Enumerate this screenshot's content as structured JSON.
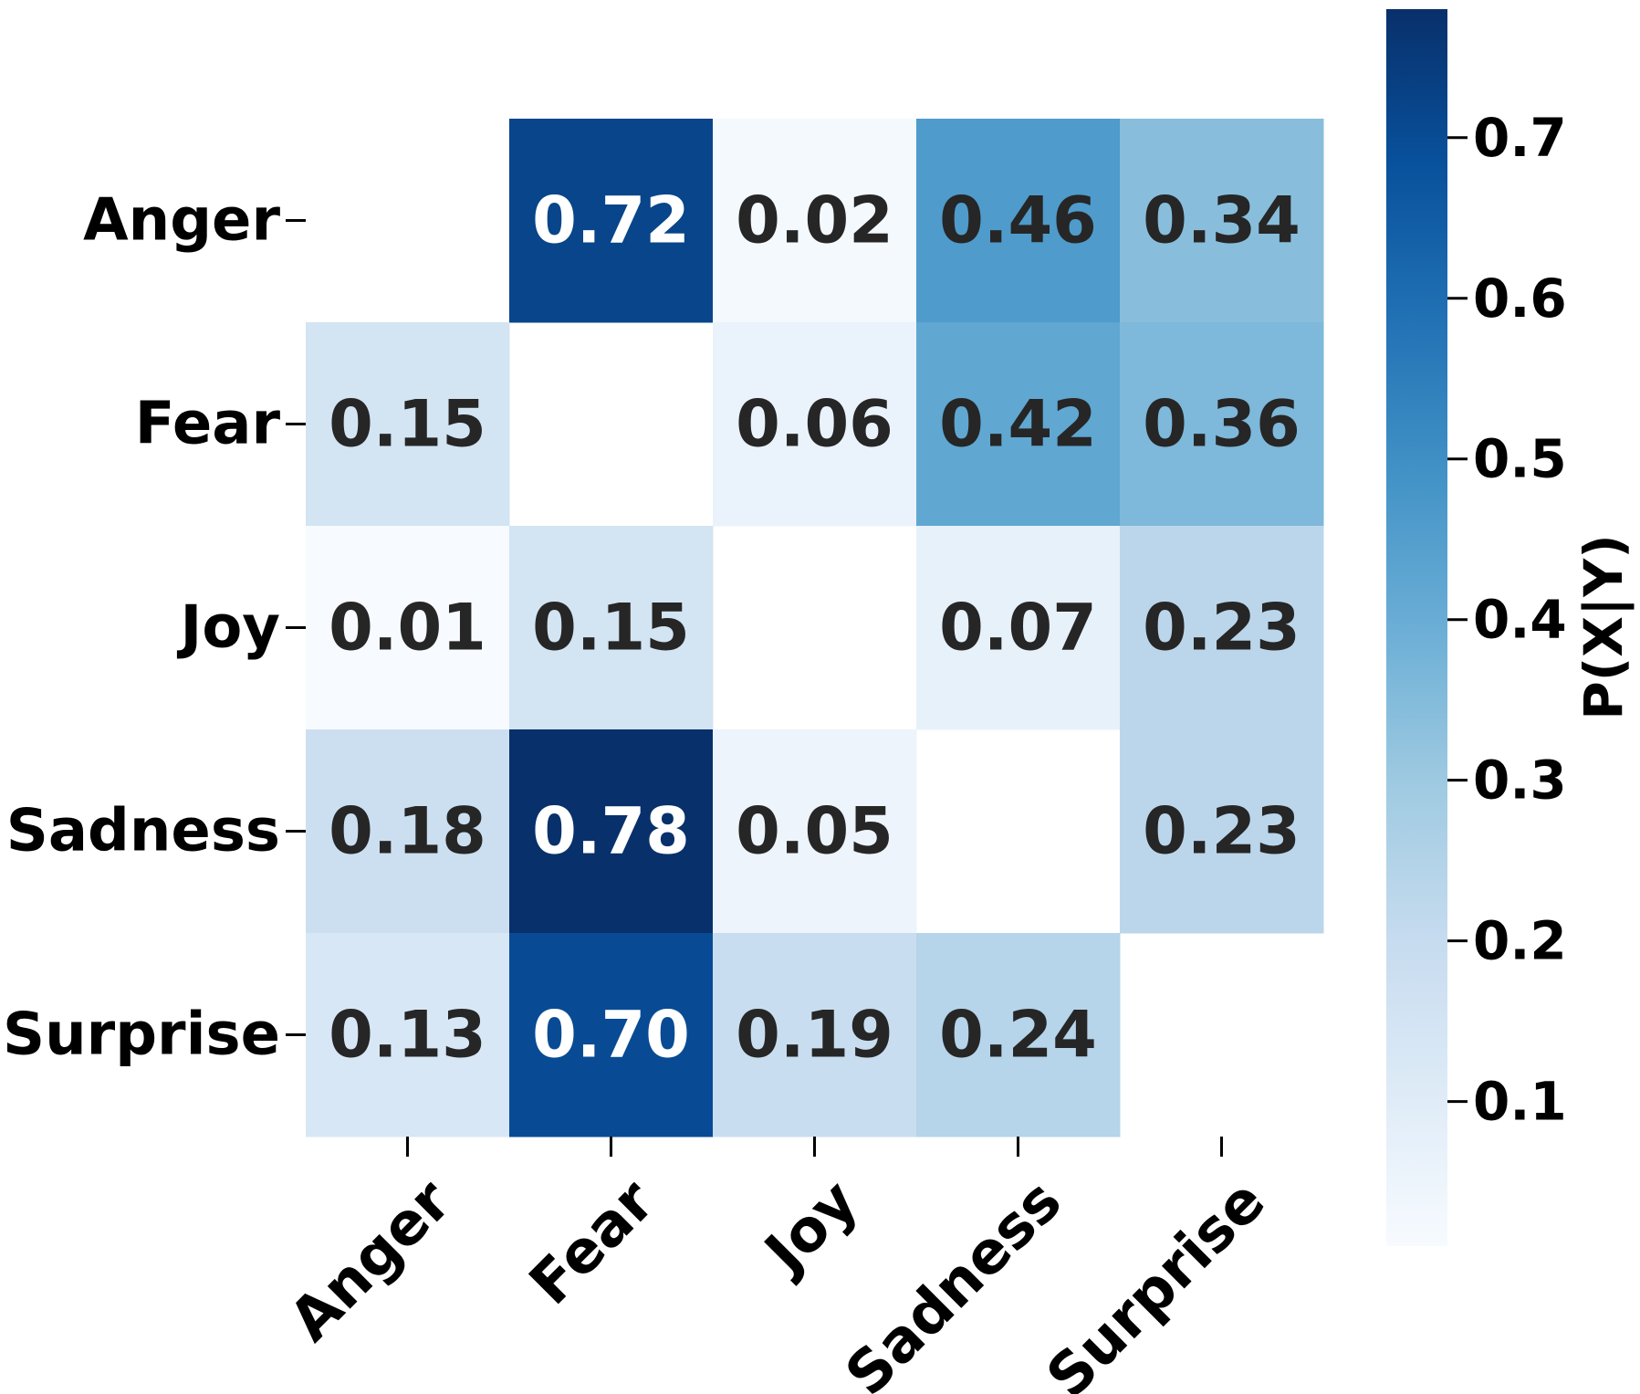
{
  "chart_data": {
    "type": "heatmap",
    "title": "",
    "xlabel": "",
    "ylabel": "",
    "x_categories": [
      "Anger",
      "Fear",
      "Joy",
      "Sadness",
      "Surprise"
    ],
    "y_categories": [
      "Anger",
      "Fear",
      "Joy",
      "Sadness",
      "Surprise"
    ],
    "values": [
      [
        null,
        0.72,
        0.02,
        0.46,
        0.34
      ],
      [
        0.15,
        null,
        0.06,
        0.42,
        0.36
      ],
      [
        0.01,
        0.15,
        null,
        0.07,
        0.23
      ],
      [
        0.18,
        0.78,
        0.05,
        null,
        0.23
      ],
      [
        0.13,
        0.7,
        0.19,
        0.24,
        null
      ]
    ],
    "value_labels": [
      [
        "",
        "0.72",
        "0.02",
        "0.46",
        "0.34"
      ],
      [
        "0.15",
        "",
        "0.06",
        "0.42",
        "0.36"
      ],
      [
        "0.01",
        "0.15",
        "",
        "0.07",
        "0.23"
      ],
      [
        "0.18",
        "0.78",
        "0.05",
        "",
        "0.23"
      ],
      [
        "0.13",
        "0.70",
        "0.19",
        "0.24",
        ""
      ]
    ],
    "colormap": "Blues",
    "colorbar": {
      "label": "P(X|Y)",
      "range": [
        0.01,
        0.78
      ],
      "ticks": [
        0.1,
        0.2,
        0.3,
        0.4,
        0.5,
        0.6,
        0.7
      ],
      "tick_labels": [
        "0.1",
        "0.2",
        "0.3",
        "0.4",
        "0.5",
        "0.6",
        "0.7"
      ]
    },
    "diagonal_masked": true,
    "grid": false
  }
}
